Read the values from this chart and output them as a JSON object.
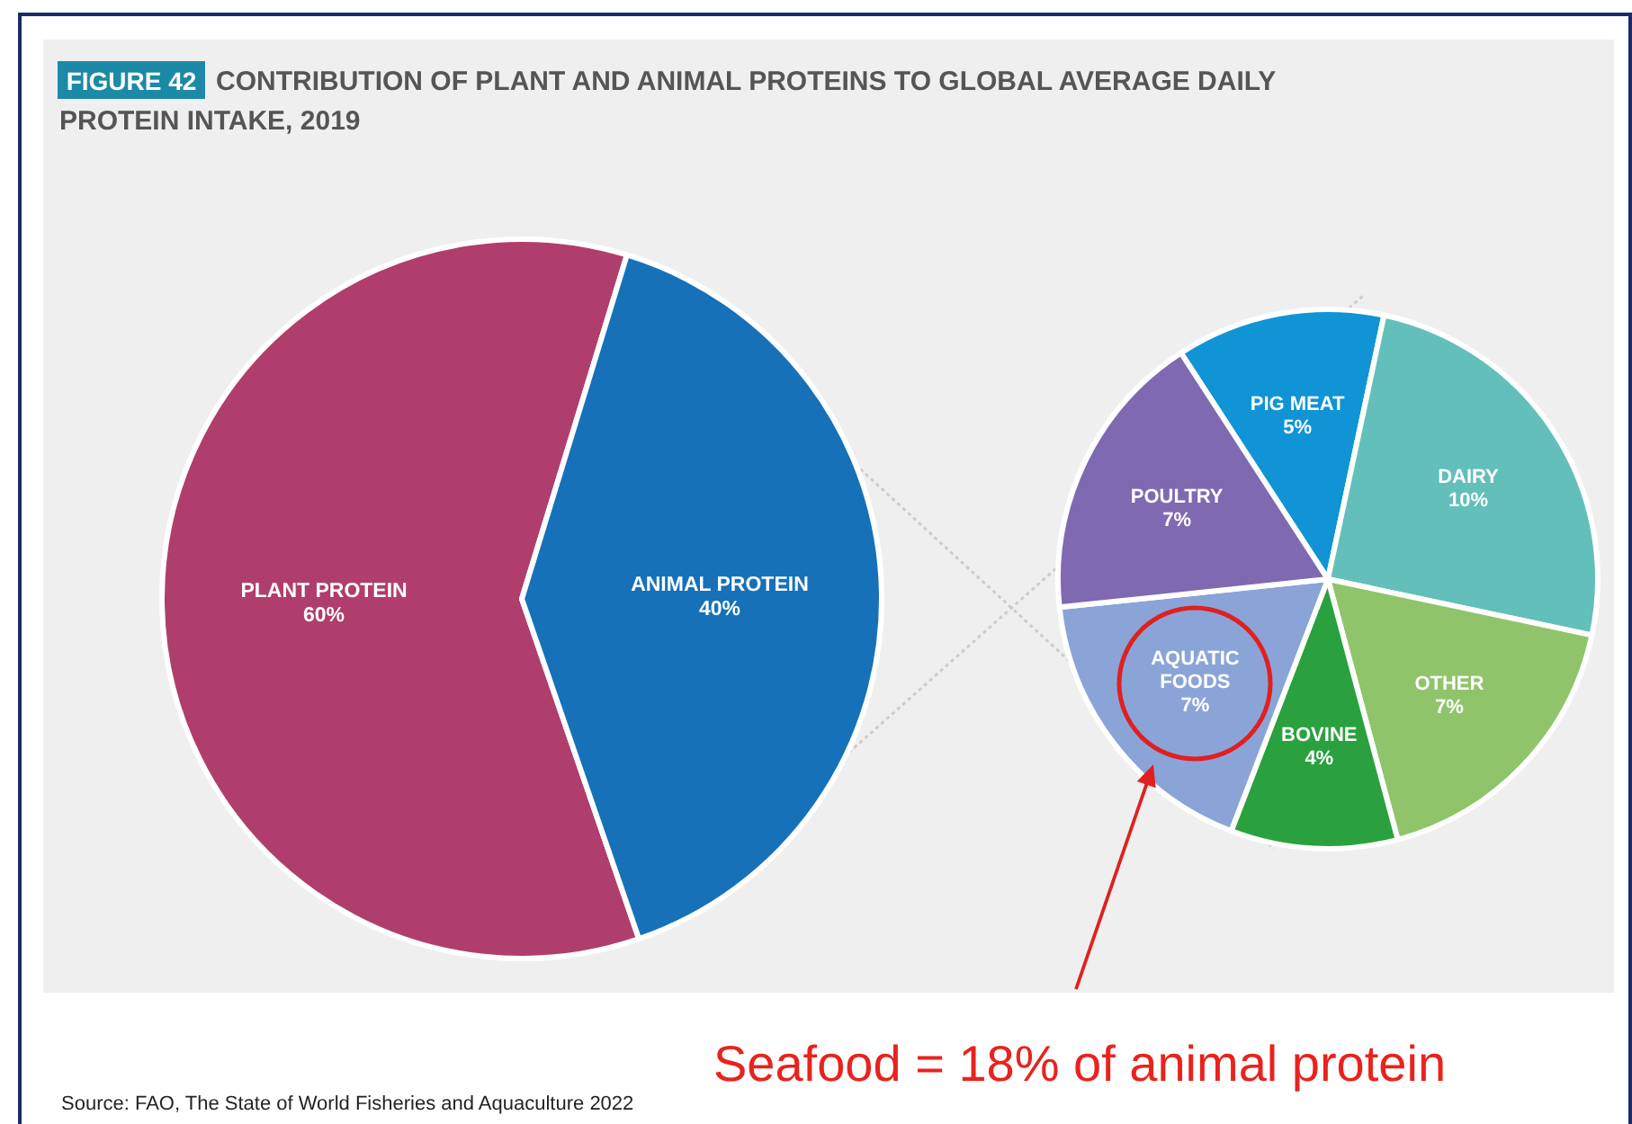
{
  "chart_data": [
    {
      "type": "pie",
      "title": "CONTRIBUTION OF PLANT AND ANIMAL PROTEINS TO GLOBAL AVERAGE DAILY PROTEIN INTAKE, 2019",
      "categories": [
        "PLANT PROTEIN",
        "ANIMAL PROTEIN"
      ],
      "values": [
        60,
        40
      ],
      "colors": [
        "#b03e6c",
        "#1671b9"
      ],
      "value_labels": [
        "60%",
        "40%"
      ],
      "annotations": [
        "FIGURE 42",
        "Seafood = 18% of animal protein",
        "Source:  FAO, The State of World Fisheries and Aquaculture 2022"
      ]
    },
    {
      "type": "pie",
      "categories": [
        "PIG MEAT",
        "DAIRY",
        "OTHER",
        "BOVINE",
        "AQUATIC FOODS",
        "POULTRY"
      ],
      "values": [
        5,
        10,
        7,
        4,
        7,
        7
      ],
      "colors": [
        "#1094d6",
        "#63bfb9",
        "#8fc46b",
        "#2aa13e",
        "#8aa4d7",
        "#7f69b0"
      ],
      "value_labels": [
        "5%",
        "10%",
        "7%",
        "4%",
        "7%",
        "7%"
      ]
    }
  ]
}
